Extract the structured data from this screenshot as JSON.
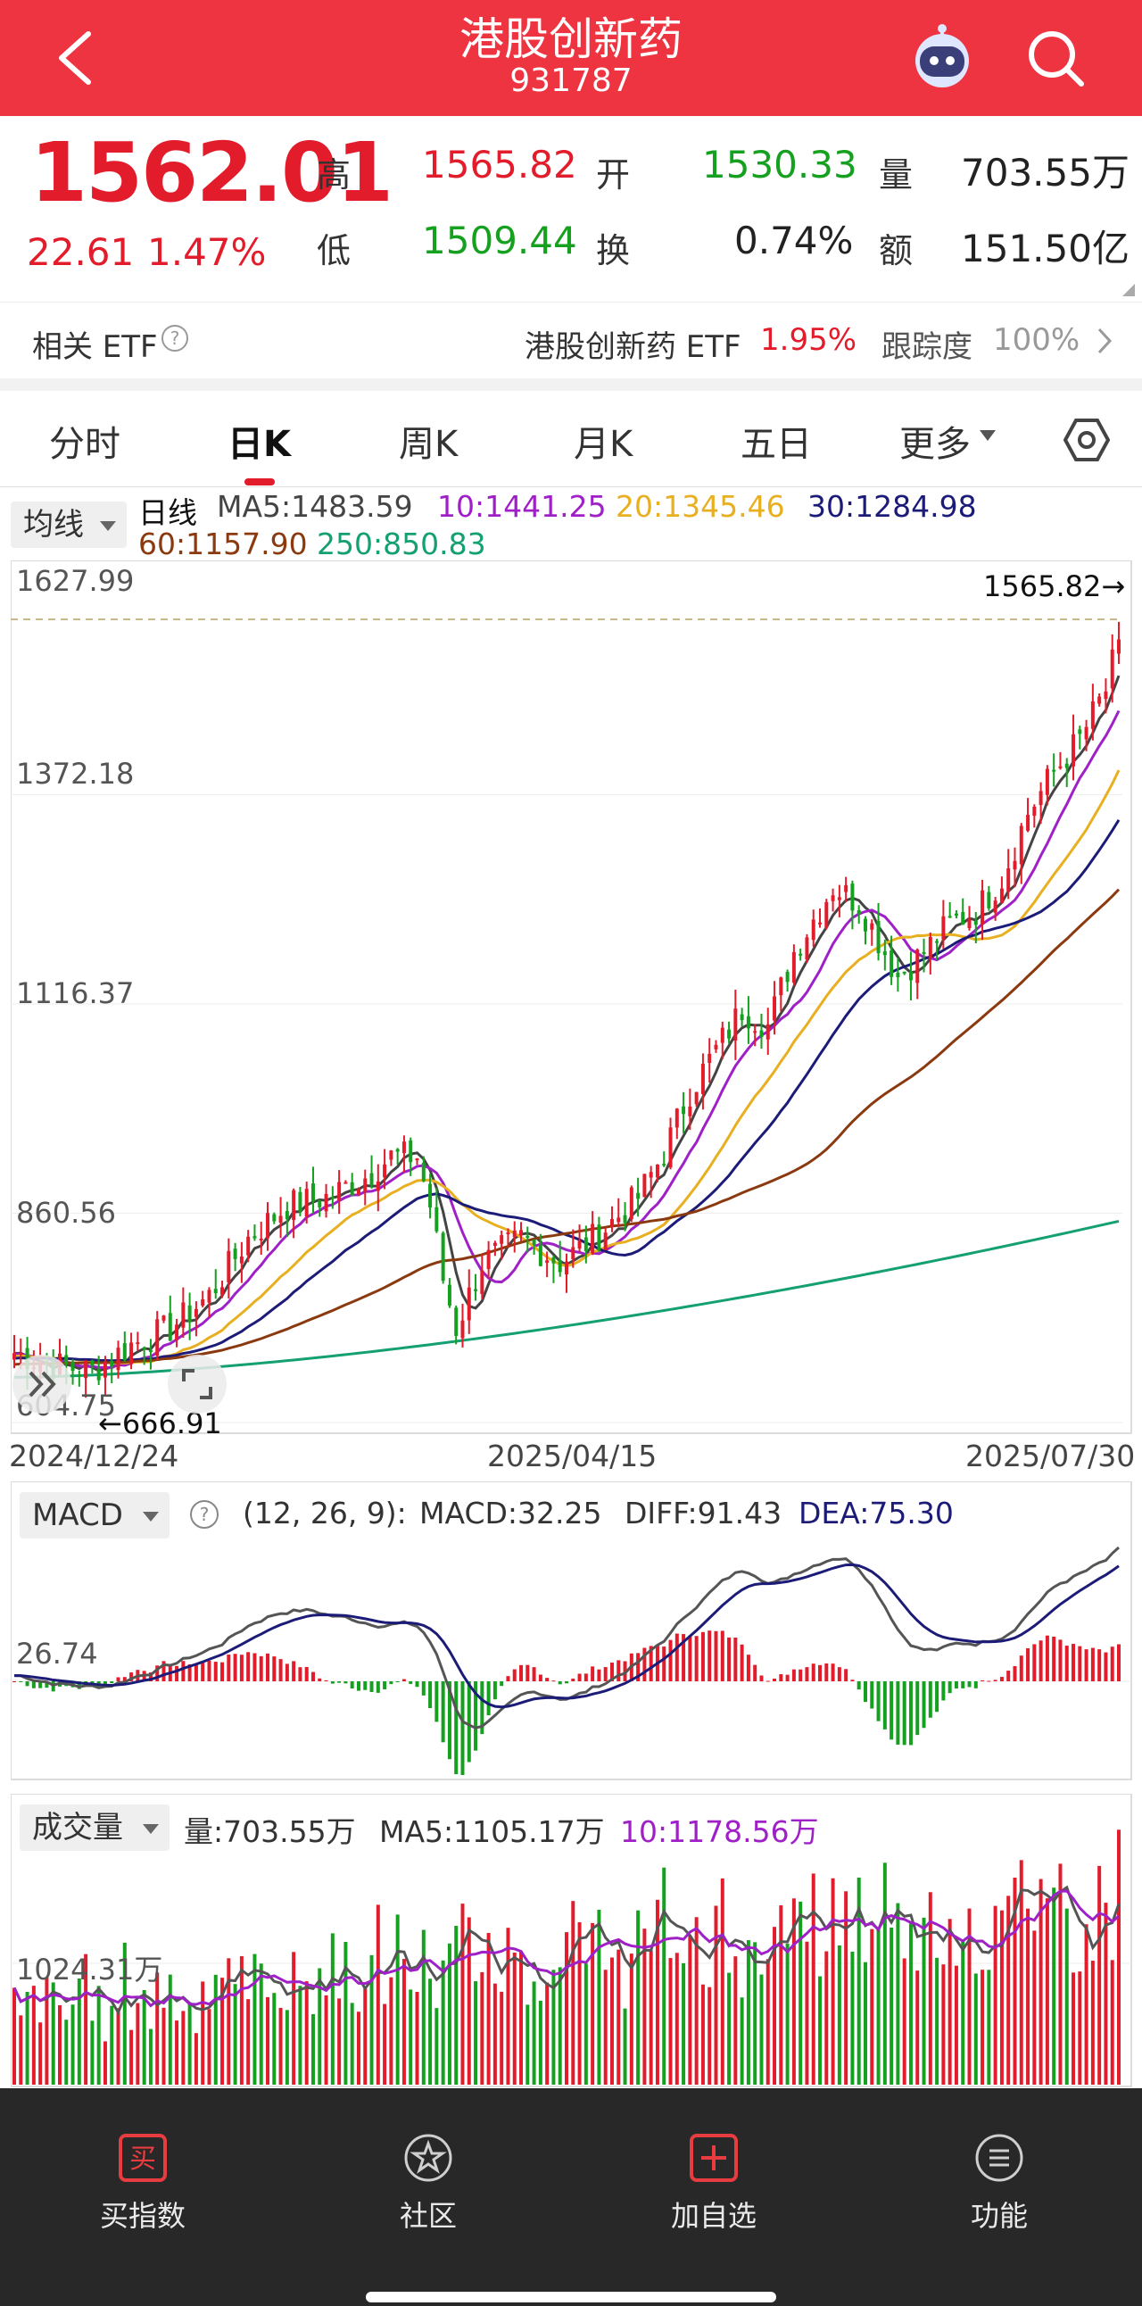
{
  "header": {
    "title": "港股创新药",
    "code": "931787",
    "bg_color": "#ee3440"
  },
  "quote": {
    "price": "1562.01",
    "change": "22.61",
    "change_pct": "1.47%",
    "high_label": "高",
    "high": "1565.82",
    "low_label": "低",
    "low": "1509.44",
    "open_label": "开",
    "open": "1530.33",
    "turnover_label": "换",
    "turnover": "0.74%",
    "volume_label": "量",
    "volume": "703.55万",
    "amount_label": "额",
    "amount": "151.50亿"
  },
  "etf": {
    "label": "相关 ETF",
    "name": "港股创新药 ETF",
    "pct": "1.95%",
    "track_label": "跟踪度",
    "track": "100%"
  },
  "tabs": {
    "items": [
      "分时",
      "日K",
      "周K",
      "月K",
      "五日",
      "更多"
    ],
    "active": "日K"
  },
  "kline": {
    "selector": "均线",
    "period": "日线",
    "ma5": "MA5:1483.59",
    "ma10": "10:1441.25",
    "ma20": "20:1345.46",
    "ma30": "30:1284.98",
    "ma60": "60:1157.90",
    "ma250": "250:850.83",
    "y_ticks": [
      "1627.99",
      "1372.18",
      "1116.37",
      "860.56",
      "604.75"
    ],
    "max_label": "1565.82→",
    "min_label": "←666.91",
    "dates": [
      "2024/12/24",
      "2025/04/15",
      "2025/07/30"
    ]
  },
  "macd": {
    "selector": "MACD",
    "params": "(12, 26, 9):",
    "macd": "MACD:32.25",
    "diff": "DIFF:91.43",
    "dea": "DEA:75.30",
    "tick": "26.74"
  },
  "vol": {
    "selector": "成交量",
    "vol": "量:703.55万",
    "ma5": "MA5:1105.17万",
    "ma10": "10:1178.56万",
    "tick": "1024.31万"
  },
  "nav": {
    "items": [
      "买指数",
      "社区",
      "加自选",
      "功能"
    ],
    "buy_icon_text": "买"
  },
  "colors": {
    "up": "#e21c2b",
    "down": "#16a020",
    "ma5": "#444444",
    "ma10": "#a020c8",
    "ma20": "#e8b020",
    "ma30": "#1c1c78",
    "ma60": "#8b3a10",
    "ma250": "#14a070",
    "dea": "#1c1c78"
  },
  "chart_data": [
    {
      "type": "candlestick",
      "title": "日线",
      "x_range": [
        "2024/12/24",
        "2025/07/30"
      ],
      "ylim": [
        604.75,
        1627.99
      ],
      "x_ticks": [
        "2024/12/24",
        "2025/04/15",
        "2025/07/30"
      ],
      "y_ticks": [
        1627.99,
        1372.18,
        1116.37,
        860.56,
        604.75
      ],
      "grid": true,
      "annotations": [
        "1565.82→",
        "←666.91"
      ],
      "series": [
        {
          "name": "MA5",
          "last": 1483.59
        },
        {
          "name": "10",
          "last": 1441.25
        },
        {
          "name": "20",
          "last": 1345.46
        },
        {
          "name": "30",
          "last": 1284.98
        },
        {
          "name": "60",
          "last": 1157.9
        },
        {
          "name": "250",
          "last": 850.83
        }
      ],
      "close_path": [
        [
          0,
          690
        ],
        [
          6,
          675
        ],
        [
          12,
          668
        ],
        [
          18,
          700
        ],
        [
          24,
          720
        ],
        [
          30,
          760
        ],
        [
          36,
          830
        ],
        [
          42,
          870
        ],
        [
          48,
          880
        ],
        [
          54,
          905
        ],
        [
          58,
          930
        ],
        [
          62,
          930
        ],
        [
          64,
          870
        ],
        [
          66,
          780
        ],
        [
          68,
          720
        ],
        [
          72,
          800
        ],
        [
          78,
          830
        ],
        [
          84,
          800
        ],
        [
          90,
          835
        ],
        [
          96,
          880
        ],
        [
          100,
          935
        ],
        [
          104,
          1010
        ],
        [
          108,
          1060
        ],
        [
          112,
          1110
        ],
        [
          116,
          1090
        ],
        [
          120,
          1180
        ],
        [
          126,
          1260
        ],
        [
          130,
          1240
        ],
        [
          136,
          1150
        ],
        [
          140,
          1180
        ],
        [
          144,
          1215
        ],
        [
          148,
          1230
        ],
        [
          152,
          1270
        ],
        [
          156,
          1350
        ],
        [
          160,
          1400
        ],
        [
          164,
          1440
        ],
        [
          168,
          1500
        ],
        [
          170,
          1562.01
        ]
      ]
    },
    {
      "type": "bar",
      "title": "MACD",
      "params": "(12, 26, 9)",
      "values_last": {
        "MACD": 32.25,
        "DIFF": 91.43,
        "DEA": 75.3
      },
      "y_ticks": [
        26.74
      ]
    },
    {
      "type": "bar",
      "title": "成交量",
      "values_last": {
        "量": "703.55万",
        "MA5": "1105.17万",
        "10": "1178.56万"
      },
      "y_ticks": [
        "1024.31万"
      ]
    }
  ]
}
